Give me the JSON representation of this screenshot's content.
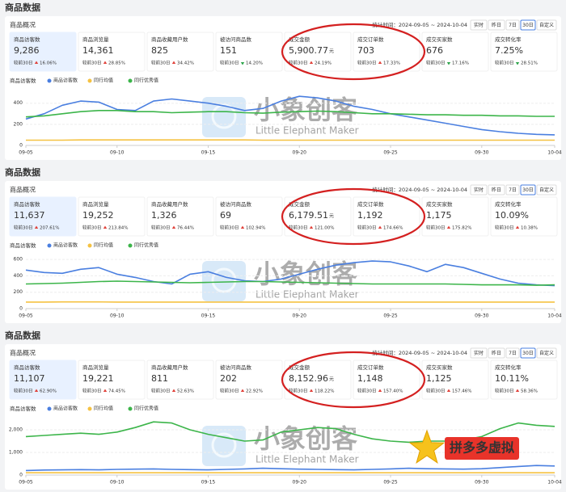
{
  "watermark": {
    "text": "小象创客",
    "subtext": "Little Elephant Maker"
  },
  "badge": "拼多多虚拟",
  "panels": [
    {
      "title": "商品数据",
      "subtitle": "商品概况",
      "period": "统计时间：2024-09-05 ~ 2024-10-04",
      "ranges": [
        "实时",
        "昨日",
        "7日",
        "30日",
        "自定义"
      ],
      "active_range": "30日",
      "compare_label": "较前30日",
      "metrics": [
        {
          "label": "商品访客数",
          "value": "9,286",
          "change": "16.06%",
          "trend": "up",
          "selected": true
        },
        {
          "label": "商品浏览量",
          "value": "14,361",
          "change": "28.85%",
          "trend": "up"
        },
        {
          "label": "商品收藏用户数",
          "value": "825",
          "change": "34.42%",
          "trend": "up"
        },
        {
          "label": "被访问商品数",
          "value": "151",
          "change": "14.20%",
          "trend": "down"
        },
        {
          "label": "成交金额",
          "value": "5,900.77",
          "unit": "元",
          "change": "24.19%",
          "trend": "up"
        },
        {
          "label": "成交订单数",
          "value": "703",
          "change": "17.33%",
          "trend": "up"
        },
        {
          "label": "成交买家数",
          "value": "676",
          "change": "17.16%",
          "trend": "down"
        },
        {
          "label": "成交转化率",
          "value": "7.25%",
          "change": "28.51%",
          "trend": "down"
        }
      ],
      "chart": {
        "type": "line",
        "xlim": [
          0,
          29
        ],
        "ylim": [
          0,
          520
        ],
        "yticks": [
          0,
          200,
          400
        ],
        "grid": true,
        "xticks": [
          {
            "value": 0,
            "label": "09-05"
          },
          {
            "value": 5,
            "label": "09-10"
          },
          {
            "value": 10,
            "label": "09-15"
          },
          {
            "value": 15,
            "label": "09-20"
          },
          {
            "value": 20,
            "label": "09-25"
          },
          {
            "value": 25,
            "label": "09-30"
          },
          {
            "value": 29,
            "label": "10-04"
          }
        ],
        "series": [
          {
            "name": "商品访客数",
            "color": "#4a7fe0",
            "values": [
              250,
              300,
              380,
              420,
              410,
              340,
              330,
              420,
              440,
              420,
              400,
              370,
              330,
              350,
              420,
              465,
              450,
              420,
              370,
              340,
              300,
              270,
              240,
              210,
              180,
              150,
              130,
              115,
              105,
              100
            ]
          },
          {
            "name": "同行均值",
            "color": "#f5c242",
            "values": [
              50,
              50,
              50,
              52,
              52,
              52,
              52,
              52,
              52,
              52,
              52,
              52,
              52,
              50,
              50,
              50,
              50,
              50,
              50,
              50,
              50,
              50,
              50,
              50,
              50,
              50,
              50,
              50,
              50,
              50
            ]
          },
          {
            "name": "同行优秀值",
            "color": "#3cb54a",
            "values": [
              270,
              280,
              300,
              320,
              330,
              330,
              320,
              320,
              310,
              315,
              320,
              320,
              310,
              305,
              315,
              320,
              325,
              320,
              310,
              300,
              300,
              295,
              290,
              290,
              285,
              285,
              280,
              280,
              275,
              275
            ]
          }
        ]
      }
    },
    {
      "title": "商品数据",
      "subtitle": "商品概况",
      "period": "统计时间：2024-09-05 ~ 2024-10-04",
      "ranges": [
        "实时",
        "昨日",
        "7日",
        "30日",
        "自定义"
      ],
      "active_range": "30日",
      "compare_label": "较前30日",
      "metrics": [
        {
          "label": "商品访客数",
          "value": "11,637",
          "change": "207.61%",
          "trend": "up",
          "selected": true
        },
        {
          "label": "商品浏览量",
          "value": "19,252",
          "change": "213.84%",
          "trend": "up"
        },
        {
          "label": "商品收藏用户数",
          "value": "1,326",
          "change": "76.44%",
          "trend": "up"
        },
        {
          "label": "被访问商品数",
          "value": "69",
          "change": "102.94%",
          "trend": "up"
        },
        {
          "label": "成交金额",
          "value": "6,179.51",
          "unit": "元",
          "change": "121.00%",
          "trend": "up"
        },
        {
          "label": "成交订单数",
          "value": "1,192",
          "change": "174.66%",
          "trend": "up"
        },
        {
          "label": "成交买家数",
          "value": "1,175",
          "change": "175.82%",
          "trend": "up"
        },
        {
          "label": "成交转化率",
          "value": "10.09%",
          "change": "10.38%",
          "trend": "up"
        }
      ],
      "chart": {
        "type": "line",
        "xlim": [
          0,
          29
        ],
        "ylim": [
          0,
          650
        ],
        "yticks": [
          0,
          200,
          400,
          600
        ],
        "grid": true,
        "xticks": [
          {
            "value": 0,
            "label": "09-05"
          },
          {
            "value": 5,
            "label": "09-10"
          },
          {
            "value": 10,
            "label": "09-15"
          },
          {
            "value": 15,
            "label": "09-20"
          },
          {
            "value": 20,
            "label": "09-25"
          },
          {
            "value": 25,
            "label": "09-30"
          },
          {
            "value": 29,
            "label": "10-04"
          }
        ],
        "series": [
          {
            "name": "商品访客数",
            "color": "#4a7fe0",
            "values": [
              470,
              440,
              430,
              480,
              500,
              420,
              380,
              330,
              300,
              420,
              450,
              380,
              340,
              330,
              360,
              420,
              480,
              530,
              560,
              580,
              570,
              520,
              450,
              540,
              500,
              430,
              360,
              310,
              290,
              280
            ]
          },
          {
            "name": "同行均值",
            "color": "#f5c242",
            "values": [
              80,
              80,
              82,
              82,
              82,
              80,
              80,
              80,
              80,
              80,
              80,
              80,
              80,
              80,
              80,
              80,
              80,
              80,
              80,
              80,
              80,
              80,
              80,
              80,
              80,
              80,
              80,
              80,
              80,
              80
            ]
          },
          {
            "name": "同行优秀值",
            "color": "#3cb54a",
            "values": [
              300,
              305,
              310,
              320,
              330,
              335,
              330,
              325,
              320,
              315,
              320,
              325,
              330,
              330,
              325,
              320,
              315,
              310,
              305,
              300,
              300,
              300,
              300,
              300,
              295,
              290,
              290,
              290,
              285,
              290
            ]
          }
        ]
      }
    },
    {
      "title": "商品数据",
      "subtitle": "商品概况",
      "period": "统计时间：2024-09-05 ~ 2024-10-04",
      "ranges": [
        "实时",
        "昨日",
        "7日",
        "30日",
        "自定义"
      ],
      "active_range": "30日",
      "compare_label": "较前30日",
      "metrics": [
        {
          "label": "商品访客数",
          "value": "11,107",
          "change": "62.90%",
          "trend": "up",
          "selected": true
        },
        {
          "label": "商品浏览量",
          "value": "19,221",
          "change": "74.45%",
          "trend": "up"
        },
        {
          "label": "商品收藏用户数",
          "value": "811",
          "change": "52.63%",
          "trend": "up"
        },
        {
          "label": "被访问商品数",
          "value": "202",
          "change": "22.92%",
          "trend": "up"
        },
        {
          "label": "成交金额",
          "value": "8,152.96",
          "unit": "元",
          "change": "118.22%",
          "trend": "up"
        },
        {
          "label": "成交订单数",
          "value": "1,148",
          "change": "157.40%",
          "trend": "up"
        },
        {
          "label": "成交买家数",
          "value": "1,125",
          "change": "157.46%",
          "trend": "up"
        },
        {
          "label": "成交转化率",
          "value": "10.11%",
          "change": "58.36%",
          "trend": "up"
        }
      ],
      "chart": {
        "type": "line",
        "xlim": [
          0,
          29
        ],
        "ylim": [
          0,
          2500
        ],
        "yticks": [
          0,
          {
            "value": 1000,
            "label": "1,000"
          },
          {
            "value": 2000,
            "label": "2,000"
          }
        ],
        "grid": true,
        "xticks": [
          {
            "value": 0,
            "label": "09-05"
          },
          {
            "value": 5,
            "label": "09-10"
          },
          {
            "value": 10,
            "label": "09-15"
          },
          {
            "value": 15,
            "label": "09-20"
          },
          {
            "value": 20,
            "label": "09-25"
          },
          {
            "value": 25,
            "label": "09-30"
          },
          {
            "value": 29,
            "label": "10-04"
          }
        ],
        "series": [
          {
            "name": "商品访客数",
            "color": "#4a7fe0",
            "values": [
              200,
              220,
              230,
              240,
              230,
              250,
              260,
              270,
              250,
              240,
              230,
              250,
              270,
              300,
              280,
              260,
              250,
              240,
              230,
              250,
              270,
              300,
              280,
              270,
              260,
              280,
              330,
              380,
              420,
              400
            ]
          },
          {
            "name": "同行均值",
            "color": "#f5c242",
            "values": [
              100,
              100,
              100,
              100,
              100,
              100,
              100,
              100,
              100,
              100,
              100,
              100,
              100,
              100,
              100,
              100,
              100,
              100,
              100,
              100,
              100,
              100,
              100,
              100,
              100,
              100,
              100,
              100,
              100,
              100
            ]
          },
          {
            "name": "同行优秀值",
            "color": "#3cb54a",
            "values": [
              1700,
              1750,
              1800,
              1850,
              1800,
              1900,
              2100,
              2350,
              2300,
              2000,
              1800,
              1650,
              1500,
              1550,
              1900,
              2000,
              2100,
              2050,
              1800,
              1600,
              1500,
              1450,
              1500,
              1500,
              1550,
              1700,
              2050,
              2300,
              2200,
              2150
            ]
          }
        ]
      }
    }
  ]
}
